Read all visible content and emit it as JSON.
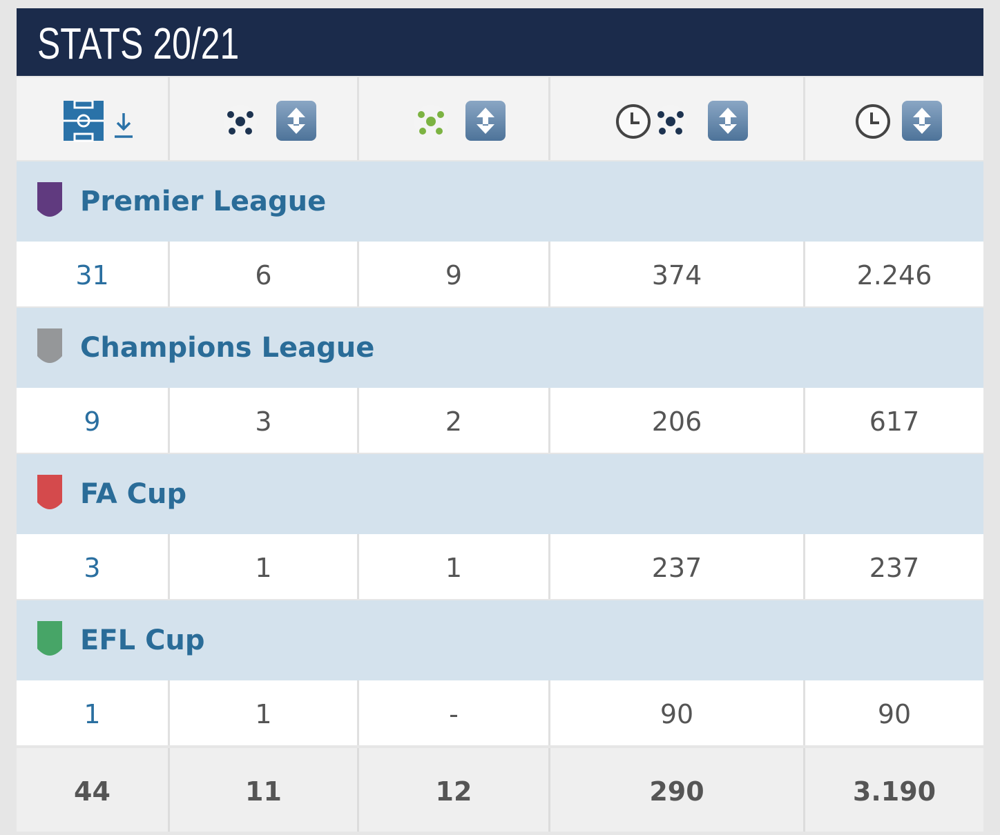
{
  "header": {
    "title": "STATS 20/21"
  },
  "competitions": [
    {
      "name": "Premier League",
      "stats": [
        "31",
        "6",
        "9",
        "374",
        "2.246"
      ]
    },
    {
      "name": "Champions League",
      "stats": [
        "9",
        "3",
        "2",
        "206",
        "617"
      ]
    },
    {
      "name": "FA Cup",
      "stats": [
        "3",
        "1",
        "1",
        "237",
        "237"
      ]
    },
    {
      "name": "EFL Cup",
      "stats": [
        "1",
        "1",
        "-",
        "90",
        "90"
      ]
    }
  ],
  "totals": [
    "44",
    "11",
    "12",
    "290",
    "3.190"
  ]
}
